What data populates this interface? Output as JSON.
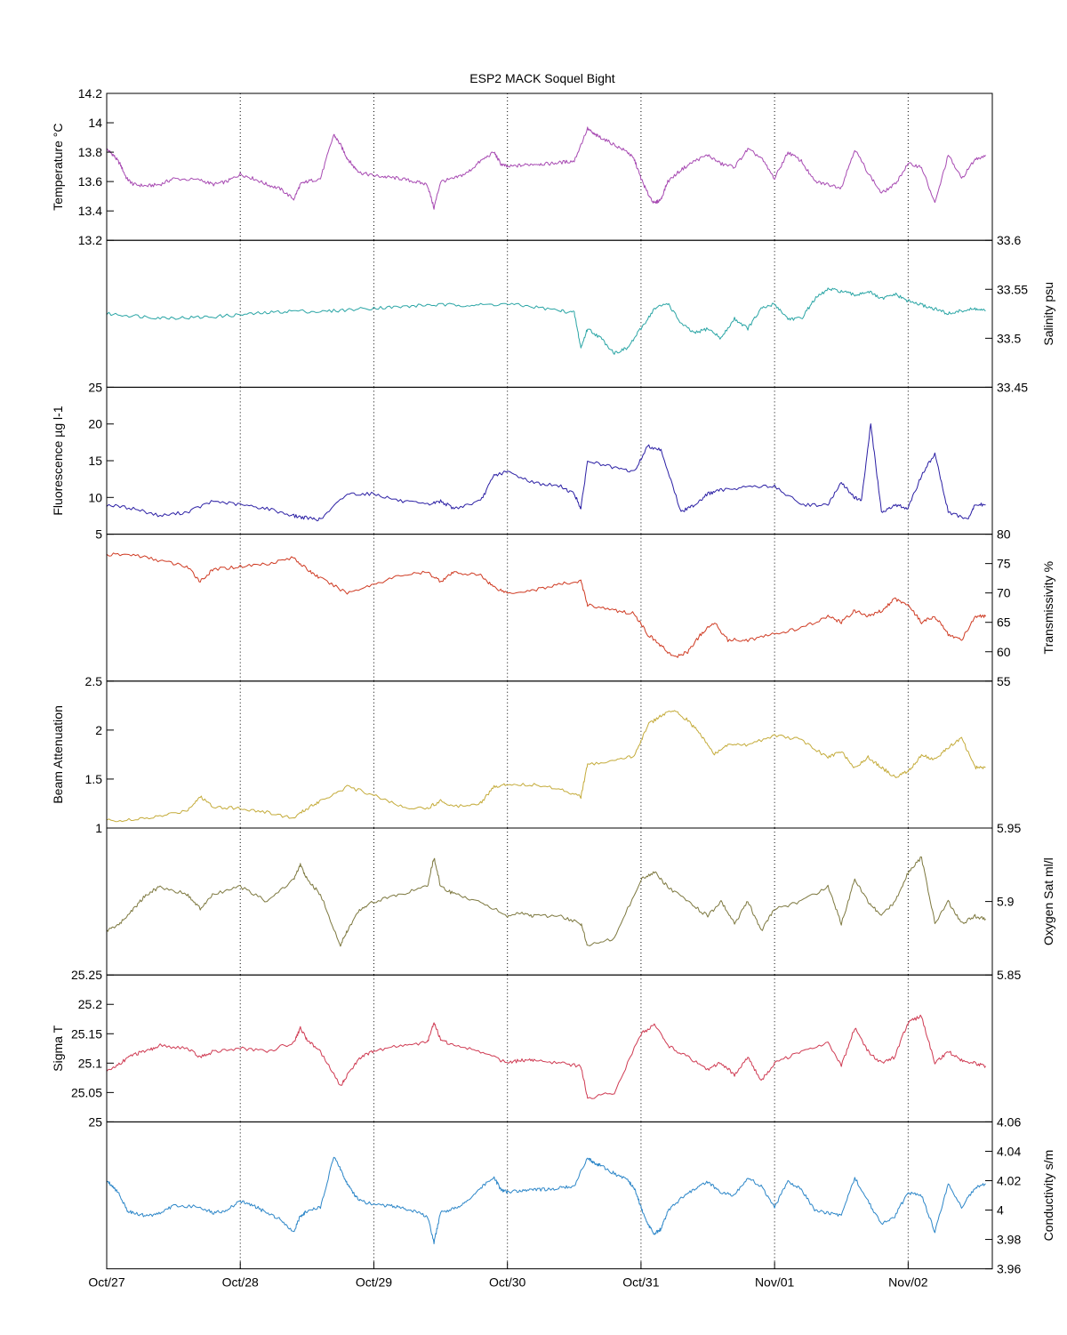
{
  "chart_data": {
    "type": "line",
    "title": "ESP2 MACK  Soquel Bight",
    "x_range": [
      "Oct/27",
      "Nov/02 14:00"
    ],
    "x_ticks": [
      "Oct/27",
      "Oct/28",
      "Oct/29",
      "Oct/30",
      "Oct/31",
      "Nov/01",
      "Nov/02"
    ],
    "grid": "vertical dotted at day ticks",
    "panels": [
      {
        "id": "temperature",
        "ylabel": "Temperature °C",
        "axis_side": "left",
        "ylim": [
          13.2,
          14.2
        ],
        "y_ticks": [
          13.2,
          13.4,
          13.6,
          13.8,
          14,
          14.2
        ],
        "y_tick_labels": [
          "13.2",
          "13.4",
          "13.6",
          "13.8",
          "14",
          "14.2"
        ],
        "color": "#a74ab2",
        "x": [
          0,
          0.05,
          0.1,
          0.15,
          0.2,
          0.3,
          0.4,
          0.5,
          0.7,
          0.8,
          0.9,
          1.0,
          1.1,
          1.2,
          1.3,
          1.4,
          1.45,
          1.5,
          1.6,
          1.7,
          1.75,
          1.8,
          1.85,
          1.9,
          2.0,
          2.1,
          2.2,
          2.3,
          2.4,
          2.45,
          2.5,
          2.6,
          2.7,
          2.8,
          2.9,
          2.95,
          3.0,
          3.1,
          3.2,
          3.3,
          3.4,
          3.5,
          3.6,
          3.65,
          3.7,
          3.8,
          3.9,
          3.95,
          4.0,
          4.05,
          4.1,
          4.15,
          4.2,
          4.3,
          4.4,
          4.5,
          4.6,
          4.7,
          4.8,
          4.9,
          5.0,
          5.1,
          5.2,
          5.3,
          5.4,
          5.5,
          5.6,
          5.7,
          5.8,
          5.9,
          6.0,
          6.1,
          6.2,
          6.3,
          6.4,
          6.5,
          6.58
        ],
        "y": [
          13.82,
          13.78,
          13.72,
          13.62,
          13.58,
          13.57,
          13.58,
          13.62,
          13.61,
          13.58,
          13.6,
          13.65,
          13.62,
          13.58,
          13.55,
          13.48,
          13.58,
          13.6,
          13.62,
          13.92,
          13.85,
          13.76,
          13.7,
          13.66,
          13.64,
          13.63,
          13.62,
          13.6,
          13.58,
          13.42,
          13.6,
          13.62,
          13.66,
          13.74,
          13.8,
          13.72,
          13.7,
          13.71,
          13.72,
          13.72,
          13.73,
          13.74,
          13.96,
          13.92,
          13.9,
          13.85,
          13.8,
          13.75,
          13.62,
          13.52,
          13.45,
          13.48,
          13.6,
          13.68,
          13.74,
          13.78,
          13.72,
          13.7,
          13.82,
          13.76,
          13.62,
          13.8,
          13.74,
          13.6,
          13.58,
          13.56,
          13.82,
          13.66,
          13.52,
          13.58,
          13.72,
          13.7,
          13.45,
          13.78,
          13.62,
          13.75,
          13.78
        ]
      },
      {
        "id": "salinity",
        "ylabel": "Salinity psu",
        "axis_side": "right",
        "ylim": [
          33.45,
          33.6
        ],
        "y_ticks": [
          33.45,
          33.5,
          33.55,
          33.6
        ],
        "y_tick_labels": [
          "33.45",
          "33.5",
          "33.55",
          "33.6"
        ],
        "color": "#2aa5a5",
        "x": [
          0,
          0.2,
          0.4,
          0.6,
          0.8,
          1.0,
          1.2,
          1.4,
          1.6,
          1.8,
          2.0,
          2.2,
          2.4,
          2.6,
          2.8,
          3.0,
          3.2,
          3.4,
          3.5,
          3.55,
          3.6,
          3.7,
          3.8,
          3.9,
          4.0,
          4.1,
          4.2,
          4.3,
          4.4,
          4.5,
          4.6,
          4.7,
          4.8,
          4.9,
          5.0,
          5.1,
          5.2,
          5.3,
          5.4,
          5.5,
          5.6,
          5.7,
          5.8,
          5.9,
          6.0,
          6.1,
          6.2,
          6.3,
          6.4,
          6.5,
          6.58
        ],
        "y": [
          33.525,
          33.523,
          33.521,
          33.521,
          33.522,
          33.524,
          33.526,
          33.528,
          33.527,
          33.529,
          33.531,
          33.532,
          33.534,
          33.534,
          33.534,
          33.535,
          33.532,
          33.528,
          33.526,
          33.49,
          33.51,
          33.5,
          33.485,
          33.49,
          33.51,
          33.53,
          33.536,
          33.515,
          33.505,
          33.51,
          33.5,
          33.52,
          33.51,
          33.53,
          33.535,
          33.52,
          33.52,
          33.54,
          33.55,
          33.548,
          33.544,
          33.548,
          33.54,
          33.545,
          33.538,
          33.534,
          33.53,
          33.525,
          33.528,
          33.53,
          33.528
        ]
      },
      {
        "id": "fluorescence",
        "ylabel": "Fluorescence µg l-1",
        "axis_side": "left",
        "ylim": [
          5,
          25
        ],
        "y_ticks": [
          5,
          10,
          15,
          20,
          25
        ],
        "y_tick_labels": [
          "5",
          "10",
          "15",
          "20",
          "25"
        ],
        "color": "#2b1fa4",
        "x": [
          0,
          0.2,
          0.4,
          0.6,
          0.8,
          1.0,
          1.2,
          1.4,
          1.5,
          1.6,
          1.8,
          2.0,
          2.2,
          2.4,
          2.5,
          2.6,
          2.8,
          2.9,
          3.0,
          3.2,
          3.4,
          3.5,
          3.55,
          3.6,
          3.8,
          3.95,
          4.05,
          4.15,
          4.3,
          4.4,
          4.5,
          4.6,
          4.8,
          5.0,
          5.2,
          5.4,
          5.5,
          5.6,
          5.65,
          5.72,
          5.8,
          5.9,
          6.0,
          6.1,
          6.2,
          6.3,
          6.45,
          6.5,
          6.58
        ],
        "y": [
          9,
          8.5,
          7.5,
          8,
          9.5,
          9,
          8.5,
          7.5,
          7.2,
          7,
          10.5,
          10.5,
          9.5,
          9,
          9.5,
          8.5,
          9.5,
          13,
          13.5,
          12,
          11.5,
          10.5,
          8.5,
          15,
          14,
          13.5,
          17,
          16.5,
          8,
          9,
          10.5,
          11,
          11.5,
          11.5,
          9,
          9,
          12,
          10,
          9.5,
          20,
          8,
          9,
          8.5,
          13,
          16,
          8,
          7,
          9,
          9
        ]
      },
      {
        "id": "transmissivity",
        "ylabel": "Transmissivity %",
        "axis_side": "right",
        "ylim": [
          55,
          80
        ],
        "y_ticks": [
          55,
          60,
          65,
          70,
          75,
          80
        ],
        "y_tick_labels": [
          "55",
          "60",
          "65",
          "70",
          "75",
          "80"
        ],
        "color": "#cf3a22",
        "x": [
          0,
          0.2,
          0.4,
          0.6,
          0.7,
          0.8,
          1.0,
          1.2,
          1.4,
          1.5,
          1.6,
          1.8,
          2.0,
          2.2,
          2.4,
          2.5,
          2.6,
          2.8,
          2.9,
          3.0,
          3.2,
          3.4,
          3.55,
          3.6,
          3.8,
          3.95,
          4.05,
          4.15,
          4.25,
          4.35,
          4.45,
          4.55,
          4.65,
          4.8,
          5.0,
          5.2,
          5.4,
          5.5,
          5.6,
          5.7,
          5.8,
          5.9,
          6.0,
          6.1,
          6.2,
          6.3,
          6.4,
          6.5,
          6.58
        ],
        "y": [
          76.5,
          76.5,
          75.5,
          74.5,
          72,
          74,
          74.5,
          75,
          76,
          74,
          72.5,
          70,
          71.5,
          73,
          73.5,
          72,
          73.5,
          73,
          71,
          70,
          70.5,
          71.5,
          72,
          68,
          67,
          66.5,
          63,
          61,
          59,
          60,
          63,
          65,
          62,
          62,
          63,
          64,
          66,
          65,
          67,
          66,
          67,
          69,
          68,
          65,
          66,
          63,
          62,
          66,
          66
        ]
      },
      {
        "id": "beam_attenuation",
        "ylabel": "Beam Attenuation",
        "axis_side": "left",
        "ylim": [
          1,
          2.5
        ],
        "y_ticks": [
          1,
          1.5,
          2,
          2.5
        ],
        "y_tick_labels": [
          "1",
          "1.5",
          "2",
          "2.5"
        ],
        "color": "#c4ab3a",
        "x": [
          0,
          0.2,
          0.4,
          0.6,
          0.7,
          0.8,
          1.0,
          1.2,
          1.4,
          1.5,
          1.6,
          1.8,
          2.0,
          2.2,
          2.4,
          2.5,
          2.6,
          2.8,
          2.9,
          3.0,
          3.2,
          3.4,
          3.55,
          3.6,
          3.8,
          3.95,
          4.05,
          4.15,
          4.25,
          4.35,
          4.45,
          4.55,
          4.65,
          4.8,
          5.0,
          5.2,
          5.4,
          5.5,
          5.6,
          5.7,
          5.8,
          5.9,
          6.0,
          6.1,
          6.2,
          6.3,
          6.4,
          6.5,
          6.58
        ],
        "y": [
          1.08,
          1.08,
          1.12,
          1.18,
          1.32,
          1.22,
          1.2,
          1.16,
          1.1,
          1.2,
          1.28,
          1.42,
          1.34,
          1.22,
          1.2,
          1.28,
          1.22,
          1.26,
          1.42,
          1.45,
          1.44,
          1.4,
          1.32,
          1.65,
          1.68,
          1.74,
          2.05,
          2.15,
          2.2,
          2.1,
          1.95,
          1.75,
          1.85,
          1.85,
          1.95,
          1.9,
          1.72,
          1.78,
          1.62,
          1.72,
          1.62,
          1.52,
          1.58,
          1.74,
          1.7,
          1.82,
          1.92,
          1.62,
          1.62
        ]
      },
      {
        "id": "oxygen_sat",
        "ylabel": "Oxygen Sat ml/l",
        "axis_side": "right",
        "ylim": [
          5.85,
          5.95
        ],
        "y_ticks": [
          5.85,
          5.9,
          5.95
        ],
        "y_tick_labels": [
          "5.85",
          "5.9",
          "5.95"
        ],
        "color": "#7d783f",
        "x": [
          0,
          0.1,
          0.2,
          0.3,
          0.4,
          0.6,
          0.7,
          0.8,
          1.0,
          1.2,
          1.4,
          1.45,
          1.5,
          1.6,
          1.75,
          1.8,
          1.9,
          2.0,
          2.2,
          2.4,
          2.45,
          2.5,
          2.6,
          2.8,
          3.0,
          3.1,
          3.2,
          3.4,
          3.55,
          3.6,
          3.8,
          4.0,
          4.1,
          4.2,
          4.35,
          4.5,
          4.6,
          4.7,
          4.8,
          4.9,
          5.0,
          5.2,
          5.4,
          5.5,
          5.6,
          5.7,
          5.8,
          5.9,
          6.0,
          6.1,
          6.2,
          6.3,
          6.4,
          6.5,
          6.58
        ],
        "y": [
          5.88,
          5.885,
          5.895,
          5.905,
          5.91,
          5.905,
          5.895,
          5.905,
          5.91,
          5.9,
          5.915,
          5.925,
          5.915,
          5.905,
          5.87,
          5.88,
          5.895,
          5.9,
          5.905,
          5.91,
          5.93,
          5.91,
          5.905,
          5.9,
          5.89,
          5.892,
          5.89,
          5.89,
          5.885,
          5.87,
          5.875,
          5.915,
          5.92,
          5.91,
          5.9,
          5.89,
          5.9,
          5.885,
          5.9,
          5.88,
          5.895,
          5.9,
          5.91,
          5.885,
          5.915,
          5.9,
          5.89,
          5.9,
          5.92,
          5.93,
          5.885,
          5.9,
          5.885,
          5.89,
          5.888
        ]
      },
      {
        "id": "sigma_t",
        "ylabel": "Sigma T",
        "axis_side": "left",
        "ylim": [
          25,
          25.25
        ],
        "y_ticks": [
          25,
          25.05,
          25.1,
          25.15,
          25.2,
          25.25
        ],
        "y_tick_labels": [
          "25",
          "25.05",
          "25.1",
          "25.15",
          "25.2",
          "25.25"
        ],
        "color": "#cf3a52",
        "x": [
          0,
          0.1,
          0.2,
          0.3,
          0.4,
          0.6,
          0.7,
          0.8,
          1.0,
          1.2,
          1.4,
          1.45,
          1.5,
          1.6,
          1.75,
          1.8,
          1.9,
          2.0,
          2.2,
          2.4,
          2.45,
          2.5,
          2.6,
          2.8,
          3.0,
          3.1,
          3.2,
          3.4,
          3.55,
          3.6,
          3.8,
          4.0,
          4.1,
          4.2,
          4.35,
          4.5,
          4.6,
          4.7,
          4.8,
          4.9,
          5.0,
          5.2,
          5.4,
          5.5,
          5.6,
          5.7,
          5.8,
          5.9,
          6.0,
          6.1,
          6.2,
          6.3,
          6.4,
          6.5,
          6.58
        ],
        "y": [
          25.085,
          25.1,
          25.115,
          25.12,
          25.13,
          25.125,
          25.11,
          25.12,
          25.125,
          25.12,
          25.135,
          25.16,
          25.14,
          25.12,
          25.06,
          25.08,
          25.11,
          25.12,
          25.13,
          25.135,
          25.17,
          25.14,
          25.13,
          25.12,
          25.1,
          25.105,
          25.105,
          25.1,
          25.095,
          25.04,
          25.05,
          25.15,
          25.165,
          25.13,
          25.11,
          25.09,
          25.1,
          25.08,
          25.11,
          25.07,
          25.1,
          25.12,
          25.135,
          25.095,
          25.16,
          25.12,
          25.1,
          25.11,
          25.17,
          25.18,
          25.1,
          25.12,
          25.105,
          25.1,
          25.095
        ]
      },
      {
        "id": "conductivity",
        "ylabel": "Conductivity s/m",
        "axis_side": "right",
        "ylim": [
          3.96,
          4.06
        ],
        "y_ticks": [
          3.96,
          3.98,
          4,
          4.02,
          4.04,
          4.06
        ],
        "y_tick_labels": [
          "3.96",
          "3.98",
          "4",
          "4.02",
          "4.04",
          "4.06"
        ],
        "color": "#2c86c8",
        "x": [
          0,
          0.05,
          0.1,
          0.15,
          0.2,
          0.3,
          0.4,
          0.5,
          0.7,
          0.8,
          0.9,
          1.0,
          1.1,
          1.2,
          1.3,
          1.4,
          1.45,
          1.5,
          1.6,
          1.7,
          1.75,
          1.8,
          1.85,
          1.9,
          2.0,
          2.1,
          2.2,
          2.3,
          2.4,
          2.45,
          2.5,
          2.6,
          2.7,
          2.8,
          2.9,
          2.95,
          3.0,
          3.1,
          3.2,
          3.3,
          3.4,
          3.5,
          3.6,
          3.65,
          3.7,
          3.8,
          3.9,
          3.95,
          4.0,
          4.05,
          4.1,
          4.15,
          4.2,
          4.3,
          4.4,
          4.5,
          4.6,
          4.7,
          4.8,
          4.9,
          5.0,
          5.1,
          5.2,
          5.3,
          5.4,
          5.5,
          5.6,
          5.7,
          5.8,
          5.9,
          6.0,
          6.1,
          6.2,
          6.3,
          6.4,
          6.5,
          6.58
        ],
        "y": [
          4.02,
          4.016,
          4.01,
          4.0,
          3.998,
          3.996,
          3.998,
          4.003,
          4.002,
          3.998,
          4.0,
          4.006,
          4.003,
          3.998,
          3.994,
          3.985,
          3.996,
          3.999,
          4.002,
          4.036,
          4.028,
          4.018,
          4.011,
          4.006,
          4.004,
          4.003,
          4.002,
          3.999,
          3.996,
          3.978,
          3.998,
          4.001,
          4.006,
          4.015,
          4.022,
          4.014,
          4.012,
          4.013,
          4.014,
          4.014,
          4.015,
          4.016,
          4.036,
          4.032,
          4.03,
          4.025,
          4.02,
          4.015,
          4.002,
          3.99,
          3.984,
          3.987,
          3.999,
          4.008,
          4.014,
          4.019,
          4.012,
          4.01,
          4.022,
          4.016,
          4.002,
          4.02,
          4.014,
          4.0,
          3.998,
          3.996,
          4.022,
          4.006,
          3.99,
          3.996,
          4.012,
          4.01,
          3.985,
          4.018,
          4.002,
          4.015,
          4.018
        ]
      }
    ]
  }
}
